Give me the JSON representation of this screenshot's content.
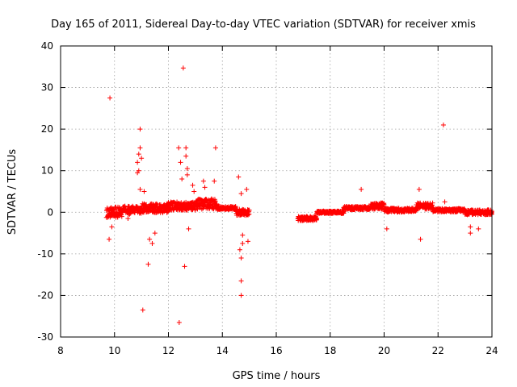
{
  "chart_data": {
    "type": "scatter",
    "title": "Day 165 of 2011, Sidereal Day-to-day VTEC variation (SDTVAR) for receiver xmis",
    "xlabel": "GPS time / hours",
    "ylabel": "SDTVAR / TECUs",
    "xlim": [
      8,
      24
    ],
    "ylim": [
      -30,
      40
    ],
    "xticks": [
      8,
      10,
      12,
      14,
      16,
      18,
      20,
      22,
      24
    ],
    "yticks": [
      -30,
      -20,
      -10,
      0,
      10,
      20,
      30,
      40
    ],
    "grid": true,
    "marker": "+",
    "color": "#ff0000",
    "series": [
      {
        "name": "SDTVAR",
        "dense_segments": [
          {
            "x_start": 9.7,
            "x_end": 10.3,
            "y_center": 0.0,
            "spread": 2.5
          },
          {
            "x_start": 10.3,
            "x_end": 11.0,
            "y_center": 0.5,
            "spread": 2.0
          },
          {
            "x_start": 11.0,
            "x_end": 12.0,
            "y_center": 1.0,
            "spread": 2.2
          },
          {
            "x_start": 12.0,
            "x_end": 13.0,
            "y_center": 1.5,
            "spread": 2.0
          },
          {
            "x_start": 13.0,
            "x_end": 13.8,
            "y_center": 2.0,
            "spread": 2.5
          },
          {
            "x_start": 13.8,
            "x_end": 14.5,
            "y_center": 1.0,
            "spread": 0.8
          },
          {
            "x_start": 14.5,
            "x_end": 15.0,
            "y_center": 0.0,
            "spread": 1.5
          },
          {
            "x_start": 16.8,
            "x_end": 17.5,
            "y_center": -1.5,
            "spread": 1.0
          },
          {
            "x_start": 17.5,
            "x_end": 18.5,
            "y_center": 0.0,
            "spread": 0.6
          },
          {
            "x_start": 18.5,
            "x_end": 19.5,
            "y_center": 1.0,
            "spread": 0.8
          },
          {
            "x_start": 19.5,
            "x_end": 20.0,
            "y_center": 1.5,
            "spread": 1.5
          },
          {
            "x_start": 20.0,
            "x_end": 21.2,
            "y_center": 0.5,
            "spread": 1.0
          },
          {
            "x_start": 21.2,
            "x_end": 21.8,
            "y_center": 1.5,
            "spread": 1.5
          },
          {
            "x_start": 21.8,
            "x_end": 23.0,
            "y_center": 0.5,
            "spread": 0.8
          },
          {
            "x_start": 23.0,
            "x_end": 24.0,
            "y_center": 0.0,
            "spread": 1.2
          }
        ],
        "outliers": [
          {
            "x": 9.83,
            "y": 27.5
          },
          {
            "x": 9.8,
            "y": -6.5
          },
          {
            "x": 9.9,
            "y": -3.5
          },
          {
            "x": 10.5,
            "y": -1.5
          },
          {
            "x": 10.85,
            "y": 12.0
          },
          {
            "x": 10.9,
            "y": 14.0
          },
          {
            "x": 10.9,
            "y": 10.0
          },
          {
            "x": 10.95,
            "y": 20.0
          },
          {
            "x": 10.95,
            "y": 15.5
          },
          {
            "x": 11.0,
            "y": 13.0
          },
          {
            "x": 10.85,
            "y": 9.5
          },
          {
            "x": 10.95,
            "y": 5.5
          },
          {
            "x": 11.05,
            "y": -23.5
          },
          {
            "x": 11.1,
            "y": 5.0
          },
          {
            "x": 11.25,
            "y": -12.5
          },
          {
            "x": 11.3,
            "y": -6.5
          },
          {
            "x": 11.4,
            "y": -7.5
          },
          {
            "x": 11.5,
            "y": -5.0
          },
          {
            "x": 12.38,
            "y": 15.5
          },
          {
            "x": 12.4,
            "y": -26.5
          },
          {
            "x": 12.45,
            "y": 12.0
          },
          {
            "x": 12.5,
            "y": 8.0
          },
          {
            "x": 12.55,
            "y": 34.7
          },
          {
            "x": 12.6,
            "y": -13.0
          },
          {
            "x": 12.65,
            "y": 15.5
          },
          {
            "x": 12.65,
            "y": 13.5
          },
          {
            "x": 12.7,
            "y": 10.5
          },
          {
            "x": 12.7,
            "y": 9.0
          },
          {
            "x": 12.75,
            "y": -4.0
          },
          {
            "x": 12.9,
            "y": 6.5
          },
          {
            "x": 12.95,
            "y": 5.0
          },
          {
            "x": 13.3,
            "y": 7.5
          },
          {
            "x": 13.35,
            "y": 6.0
          },
          {
            "x": 13.7,
            "y": 7.5
          },
          {
            "x": 13.75,
            "y": 15.5
          },
          {
            "x": 14.6,
            "y": 8.5
          },
          {
            "x": 14.7,
            "y": 4.5
          },
          {
            "x": 14.65,
            "y": -9.0
          },
          {
            "x": 14.7,
            "y": -11.0
          },
          {
            "x": 14.7,
            "y": -16.5
          },
          {
            "x": 14.7,
            "y": -20.0
          },
          {
            "x": 14.75,
            "y": -7.5
          },
          {
            "x": 14.75,
            "y": -5.5
          },
          {
            "x": 14.9,
            "y": 5.5
          },
          {
            "x": 14.95,
            "y": -7.0
          },
          {
            "x": 19.15,
            "y": 5.5
          },
          {
            "x": 20.1,
            "y": -4.0
          },
          {
            "x": 21.3,
            "y": 5.5
          },
          {
            "x": 21.35,
            "y": -6.5
          },
          {
            "x": 22.2,
            "y": 21.0
          },
          {
            "x": 22.25,
            "y": 2.5
          },
          {
            "x": 23.2,
            "y": -5.0
          },
          {
            "x": 23.2,
            "y": -3.5
          },
          {
            "x": 23.5,
            "y": -4.0
          }
        ]
      }
    ]
  }
}
